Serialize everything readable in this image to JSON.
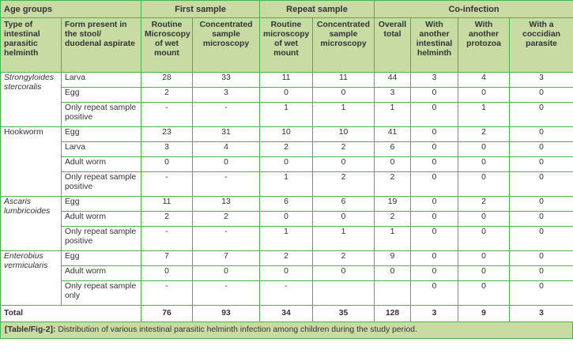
{
  "header": {
    "age_groups": "Age groups",
    "first_sample": "First sample",
    "repeat_sample": "Repeat sample",
    "coinfection": "Co-infection",
    "col_type": "Type of intestinal parasitic helminth",
    "col_form": "Form present in the stool/ duodenal aspirate",
    "col_routine1": "Routine Microscopy of wet mount",
    "col_conc1": "Concentrated sample microscopy",
    "col_routine2": "Routine microscopy of wet mount",
    "col_conc2": "Concentrated sample microscopy",
    "col_overall": "Overall total",
    "col_helminth": "With another intestinal helminth",
    "col_protozoa": "With another protozoa",
    "col_coccidian": "With a coccidian parasite"
  },
  "rows": [
    {
      "organism": "Strongyloides stercoralis",
      "form": "Larva",
      "v": [
        "28",
        "33",
        "11",
        "11",
        "44",
        "3",
        "4",
        "3"
      ]
    },
    {
      "organism": "",
      "form": "Egg",
      "v": [
        "2",
        "3",
        "0",
        "0",
        "3",
        "0",
        "0",
        "0"
      ]
    },
    {
      "organism": "",
      "form": "Only repeat sample positive",
      "v": [
        "-",
        "-",
        "1",
        "1",
        "1",
        "0",
        "1",
        "0"
      ]
    },
    {
      "organism": "Hookworm",
      "form": "Egg",
      "v": [
        "23",
        "31",
        "10",
        "10",
        "41",
        "0",
        "2",
        "0"
      ]
    },
    {
      "organism": "",
      "form": "Larva",
      "v": [
        "3",
        "4",
        "2",
        "2",
        "6",
        "0",
        "0",
        "0"
      ]
    },
    {
      "organism": "",
      "form": "Adult worm",
      "v": [
        "0",
        "0",
        "0",
        "0",
        "0",
        "0",
        "0",
        "0"
      ]
    },
    {
      "organism": "",
      "form": "Only repeat sample positive",
      "v": [
        "-",
        "-",
        "1",
        "2",
        "2",
        "0",
        "0",
        "0"
      ]
    },
    {
      "organism": "Ascaris lumbricoides",
      "form": "Egg",
      "v": [
        "11",
        "13",
        "6",
        "6",
        "19",
        "0",
        "2",
        "0"
      ]
    },
    {
      "organism": "",
      "form": "Adult worm",
      "v": [
        "2",
        "2",
        "0",
        "0",
        "2",
        "0",
        "0",
        "0"
      ]
    },
    {
      "organism": "",
      "form": "Only repeat sample positive",
      "v": [
        "-",
        "-",
        "1",
        "1",
        "1",
        "0",
        "0",
        "0"
      ]
    },
    {
      "organism": "Enterobius vermicularis",
      "form": "Egg",
      "v": [
        "7",
        "7",
        "2",
        "2",
        "9",
        "0",
        "0",
        "0"
      ]
    },
    {
      "organism": "",
      "form": "Adult worm",
      "v": [
        "0",
        "0",
        "0",
        "0",
        "0",
        "0",
        "0",
        "0"
      ]
    },
    {
      "organism": "",
      "form": "Only repeat sample only",
      "v": [
        "-",
        "-",
        "-",
        "",
        "",
        "0",
        "0",
        "0"
      ]
    }
  ],
  "total": {
    "label": "Total",
    "v": [
      "76",
      "93",
      "34",
      "35",
      "128",
      "3",
      "9",
      "3"
    ]
  },
  "caption": {
    "label": "[Table/Fig-2]:",
    "text": " Distribution of various intestinal parasitic helminth infection among children during the study period."
  }
}
